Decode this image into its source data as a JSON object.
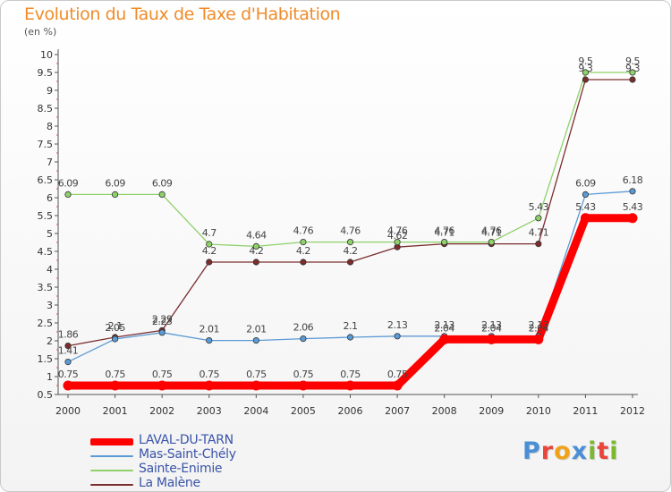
{
  "title": "Evolution du Taux de Taxe d'Habitation",
  "unit": "(en %)",
  "brand": {
    "letters": [
      "P",
      "r",
      "o",
      "x",
      "i",
      "t",
      "i"
    ],
    "colors": [
      "#4a8fd6",
      "#e8463c",
      "#f0a21a",
      "#4a8fd6",
      "#7ab82e",
      "#e8463c",
      "#7ab82e"
    ]
  },
  "chart_data": {
    "type": "line",
    "x": [
      "2000",
      "2001",
      "2002",
      "2003",
      "2004",
      "2005",
      "2006",
      "2007",
      "2008",
      "2009",
      "2010",
      "2011",
      "2012"
    ],
    "ylim": [
      0.5,
      10
    ],
    "yticks": [
      "0.5",
      "1",
      "1.5",
      "2",
      "2.5",
      "3",
      "3.5",
      "4",
      "4.5",
      "5",
      "5.5",
      "6",
      "6.5",
      "7",
      "7.5",
      "8",
      "8.5",
      "9",
      "9.5",
      "10"
    ],
    "grid": false,
    "legend_position": "bottom-left",
    "series": [
      {
        "name": "LAVAL-DU-TARN",
        "color": "#ff0000",
        "bold": true,
        "values": [
          0.75,
          0.75,
          0.75,
          0.75,
          0.75,
          0.75,
          0.75,
          0.75,
          2.04,
          2.04,
          2.04,
          5.43,
          5.43
        ],
        "labels": [
          "0.75",
          "0.75",
          "0.75",
          "0.75",
          "0.75",
          "0.75",
          "0.75",
          "0.75",
          "2.04",
          "2.04",
          "2.04",
          "5.43",
          "5.43"
        ]
      },
      {
        "name": "Mas-Saint-Chély",
        "color": "#5b9bd5",
        "values": [
          1.41,
          2.05,
          2.23,
          2.01,
          2.01,
          2.06,
          2.1,
          2.13,
          2.13,
          2.13,
          2.13,
          6.09,
          6.18
        ],
        "labels": [
          "1.41",
          "2.05",
          "2.23",
          "2.01",
          "2.01",
          "2.06",
          "2.1",
          "2.13",
          "2.13",
          "2.13",
          "2.13",
          "6.09",
          "6.18"
        ]
      },
      {
        "name": "Sainte-Enimie",
        "color": "#8fd16a",
        "values": [
          6.09,
          6.09,
          6.09,
          4.7,
          4.64,
          4.76,
          4.76,
          4.76,
          4.76,
          4.76,
          5.43,
          9.5,
          9.5
        ],
        "labels": [
          "6.09",
          "6.09",
          "6.09",
          "4.7",
          "4.64",
          "4.76",
          "4.76",
          "4.76",
          "4.76",
          "4.76",
          "5.43",
          "9.5",
          "9.5"
        ]
      },
      {
        "name": "La Malène",
        "color": "#7b2d2d",
        "values": [
          1.86,
          2.1,
          2.29,
          4.2,
          4.2,
          4.2,
          4.2,
          4.62,
          4.71,
          4.71,
          4.71,
          9.3,
          9.3
        ],
        "labels": [
          "1.86",
          "2.1",
          "2.29",
          "4.2",
          "4.2",
          "4.2",
          "4.2",
          "4.62",
          "4.71",
          "4.71",
          "4.71",
          "9.3",
          "9.3"
        ]
      }
    ]
  }
}
